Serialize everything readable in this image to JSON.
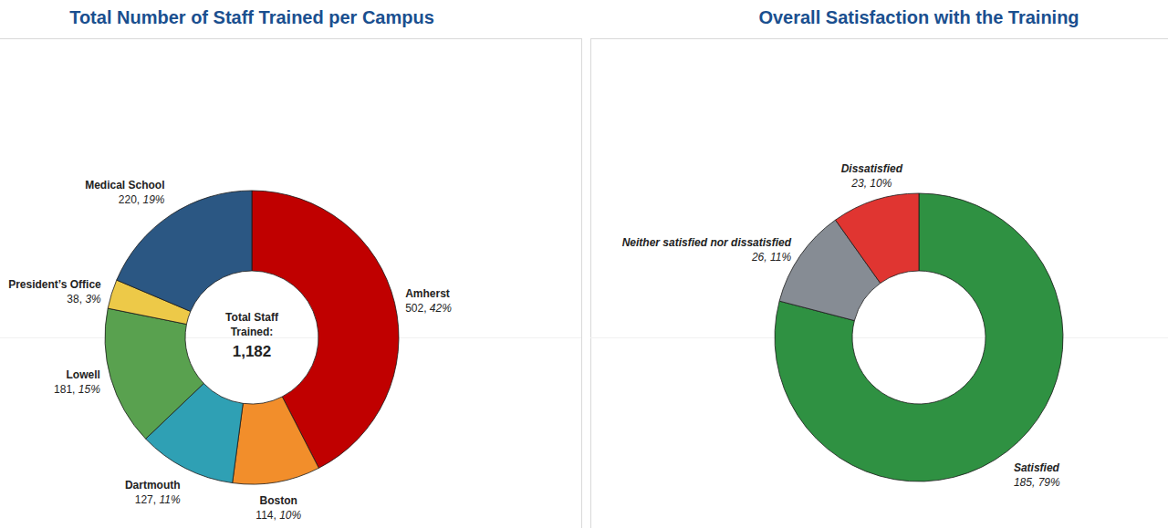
{
  "chart_data": [
    {
      "type": "pie",
      "title": "Total Number of Staff Trained per Campus",
      "categories": [
        "Amherst",
        "Boston",
        "Dartmouth",
        "Lowell",
        "President’s Office",
        "Medical School"
      ],
      "values": [
        502,
        114,
        127,
        181,
        38,
        220
      ],
      "value_labels": [
        "502, 42%",
        "114, 10%",
        "127, 11%",
        "181, 15%",
        "38, 3%",
        "220, 19%"
      ],
      "colors": [
        "#c00000",
        "#f28e2b",
        "#2fa0b4",
        "#59a14f",
        "#edc948",
        "#2b5783"
      ],
      "center_label": "Total Staff Trained:",
      "total": {
        "value": 1182,
        "label": "1,182"
      },
      "data_labels": true
    },
    {
      "type": "pie",
      "title": "Overall Satisfaction with the Training",
      "categories": [
        "Satisfied",
        "Neither satisfied nor dissatisfied",
        "Dissatisfied"
      ],
      "values": [
        185,
        26,
        23
      ],
      "value_labels": [
        "185, 79%",
        "26, 11%",
        "23, 10%"
      ],
      "colors": [
        "#2f9142",
        "#868c94",
        "#e03531"
      ],
      "data_labels": true
    }
  ]
}
